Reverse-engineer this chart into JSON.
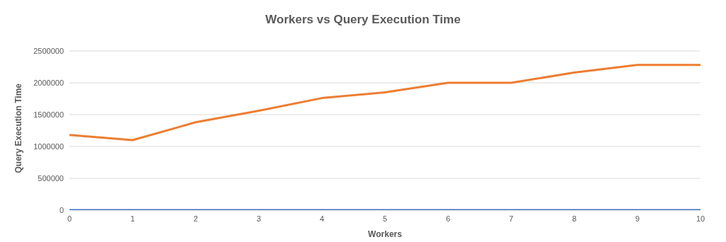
{
  "chart_data": {
    "type": "line",
    "title": "Workers vs Query Execution Time",
    "xlabel": "Workers",
    "ylabel": "Query Execution Time",
    "categories": [
      "0",
      "1",
      "2",
      "3",
      "4",
      "5",
      "6",
      "7",
      "8",
      "9",
      "10"
    ],
    "series": [
      {
        "color": "#4472c4",
        "values": [
          0,
          0,
          0,
          0,
          0,
          0,
          0,
          0,
          0,
          0,
          0
        ]
      },
      {
        "color": "#ed7d31",
        "values": [
          1180000,
          1100000,
          1380000,
          1560000,
          1760000,
          1850000,
          2000000,
          2000000,
          2160000,
          2280000,
          2280000
        ]
      }
    ],
    "ylim": [
      0,
      2500000
    ],
    "yticks": [
      0,
      500000,
      1000000,
      1500000,
      2000000,
      2500000
    ],
    "grid": "y",
    "legend": false,
    "marker": "none",
    "line_style": "solid"
  }
}
